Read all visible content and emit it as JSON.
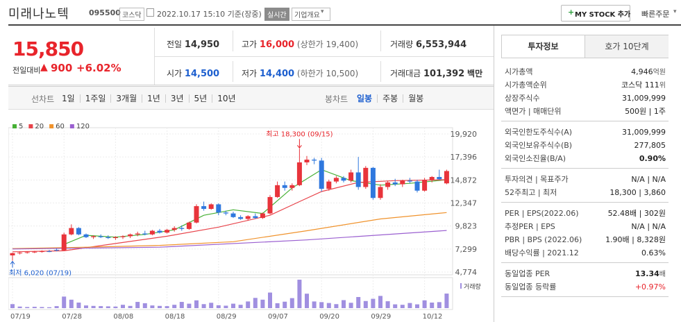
{
  "header": {
    "name": "미래나노텍",
    "code": "095500",
    "market": "코스닥",
    "datetime": "2022.10.17 15:10 기준(장중)",
    "realtime": "실시간",
    "company_info": "기업개요",
    "my_stock": "MY STOCK 추가",
    "quick_order": "빠른주문"
  },
  "quote": {
    "price": "15,850",
    "change_label": "전일대비",
    "change": "900",
    "change_rate": "+6.02%",
    "cells": [
      {
        "label": "전일",
        "value": "14,950"
      },
      {
        "label": "고가",
        "value": "16,000",
        "extra": "(상한가 19,400)"
      },
      {
        "label": "거래량",
        "value": "6,553,944"
      },
      {
        "label": "시가",
        "value": "14,500"
      },
      {
        "label": "저가",
        "value": "14,400",
        "extra": "(하한가 10,500)"
      },
      {
        "label": "거래대금",
        "value": "101,392",
        "unit": "백만"
      }
    ]
  },
  "periods": {
    "line_label": "선차트",
    "line": [
      "1일",
      "1주일",
      "3개월",
      "1년",
      "3년",
      "5년",
      "10년"
    ],
    "candle_label": "봉차트",
    "candle": [
      "일봉",
      "주봉",
      "월봉"
    ]
  },
  "chart_data": {
    "type": "candlestick",
    "categories": [
      "07/19",
      null,
      null,
      null,
      null,
      null,
      null,
      "07/28",
      null,
      null,
      null,
      null,
      null,
      null,
      "08/08",
      null,
      null,
      null,
      null,
      null,
      null,
      "08/18",
      null,
      null,
      null,
      null,
      null,
      null,
      "08/29",
      null,
      null,
      null,
      null,
      null,
      null,
      "09/07",
      null,
      null,
      null,
      null,
      null,
      null,
      "09/20",
      null,
      null,
      null,
      null,
      null,
      null,
      "09/29",
      null,
      null,
      null,
      null,
      null,
      null,
      "10/12",
      null,
      null,
      null
    ],
    "open": [
      6600,
      6850,
      6900,
      6950,
      7000,
      7050,
      7200,
      7150,
      8900,
      9600,
      8900,
      8600,
      8700,
      8600,
      8500,
      8600,
      8700,
      8900,
      9000,
      8900,
      9300,
      9100,
      9400,
      9600,
      9500,
      10200,
      12000,
      11700,
      12200,
      11300,
      11200,
      10800,
      10600,
      10900,
      10700,
      11200,
      13000,
      14300,
      14000,
      14300,
      16800,
      17100,
      17000,
      13900,
      14700,
      15100,
      14800,
      15700,
      14100,
      16200,
      12900,
      14100,
      14600,
      14400,
      14800,
      14700,
      13700,
      14900,
      15200,
      14500
    ],
    "high": [
      6900,
      7000,
      7050,
      7100,
      7150,
      7200,
      7350,
      9100,
      10000,
      9700,
      9000,
      8800,
      8900,
      8800,
      8700,
      8800,
      9000,
      9200,
      9300,
      9400,
      9500,
      9500,
      9800,
      9900,
      10300,
      12200,
      12500,
      12300,
      12300,
      11500,
      11400,
      11000,
      11000,
      11200,
      11300,
      13200,
      14700,
      14700,
      14500,
      18300,
      17500,
      17300,
      17300,
      14900,
      15300,
      15300,
      16000,
      17400,
      16400,
      16300,
      14400,
      14800,
      15000,
      14900,
      15100,
      14900,
      15100,
      15300,
      16000,
      16000
    ],
    "low": [
      6020,
      6700,
      6800,
      6850,
      6900,
      6950,
      7050,
      7100,
      8800,
      8800,
      8500,
      8400,
      8500,
      8400,
      8300,
      8400,
      8500,
      8700,
      8800,
      8800,
      9000,
      9000,
      9200,
      9300,
      9400,
      10100,
      11500,
      11600,
      11000,
      11000,
      10700,
      10500,
      10400,
      10600,
      10600,
      11100,
      12900,
      13700,
      13700,
      14200,
      16500,
      16600,
      13600,
      13700,
      14500,
      14600,
      14600,
      13800,
      13900,
      12700,
      12700,
      13800,
      14200,
      14100,
      14500,
      13500,
      13600,
      14600,
      14900,
      14400
    ],
    "close": [
      6850,
      6900,
      6950,
      7000,
      7050,
      7000,
      7150,
      8900,
      9600,
      8900,
      8600,
      8700,
      8600,
      8500,
      8600,
      8700,
      8900,
      9000,
      8900,
      9300,
      9100,
      9400,
      9600,
      9500,
      10200,
      12000,
      11700,
      12200,
      11300,
      11200,
      10800,
      10600,
      10900,
      10700,
      11200,
      13000,
      14300,
      14000,
      14300,
      16800,
      17100,
      17000,
      13900,
      14700,
      15100,
      14800,
      15700,
      14100,
      16200,
      12900,
      14100,
      14600,
      14400,
      14800,
      14700,
      13700,
      14900,
      15200,
      14950,
      15850
    ],
    "up_color": "#e8343b",
    "down_color": "#2f78de",
    "ylim": [
      4774,
      19920
    ],
    "yticks": [
      {
        "value": 4774,
        "label": "4,774"
      },
      {
        "value": 7299,
        "label": "7,299"
      },
      {
        "value": 9823,
        "label": "9,823"
      },
      {
        "value": 12347,
        "label": "12,347"
      },
      {
        "value": 14872,
        "label": "14,872"
      },
      {
        "value": 17396,
        "label": "17,396"
      },
      {
        "value": 19920,
        "label": "19,920"
      }
    ],
    "series": [
      {
        "name": "5",
        "color": "#46b035",
        "x": [
          7,
          10,
          14,
          18,
          22,
          26,
          30,
          34,
          38,
          42,
          46,
          50,
          54,
          59
        ],
        "values": [
          7800,
          8800,
          8600,
          8900,
          9400,
          11000,
          11600,
          11200,
          14000,
          16000,
          14800,
          14300,
          14500,
          14900
        ]
      },
      {
        "name": "20",
        "color": "#e8434a",
        "x": [
          0,
          7,
          14,
          21,
          28,
          35,
          39,
          42,
          47,
          52,
          59
        ],
        "values": [
          7000,
          7100,
          7900,
          8700,
          9700,
          11000,
          12500,
          13600,
          14600,
          14800,
          14900
        ]
      },
      {
        "name": "60",
        "color": "#f0922b",
        "x": [
          0,
          10,
          20,
          30,
          40,
          50,
          59
        ],
        "values": [
          7350,
          7500,
          7700,
          8100,
          9300,
          10600,
          11300
        ]
      },
      {
        "name": "120",
        "color": "#9a5fd0",
        "x": [
          0,
          20,
          40,
          59
        ],
        "values": [
          7300,
          7500,
          8300,
          9330
        ]
      }
    ],
    "volume": {
      "name": "거래량",
      "color": "#a08fe0",
      "ylim": [
        0,
        15000000
      ],
      "values": [
        1800000,
        700000,
        500000,
        600000,
        500000,
        400000,
        900000,
        5200000,
        3800000,
        2500000,
        1200000,
        1000000,
        900000,
        800000,
        700000,
        1500000,
        1000000,
        2800000,
        2200000,
        1200000,
        1000000,
        900000,
        1500000,
        2800000,
        2000000,
        3500000,
        1800000,
        2400000,
        1300000,
        1100000,
        2000000,
        1500000,
        3000000,
        4600000,
        3800000,
        7000000,
        2200000,
        2900000,
        4500000,
        12800000,
        6500000,
        3000000,
        2700000,
        2300000,
        1800000,
        3600000,
        2400000,
        5000000,
        3200000,
        4200000,
        5500000,
        3100000,
        1700000,
        1500000,
        2300000,
        1700000,
        3500000,
        2500000,
        2700000,
        6553944
      ]
    },
    "annotations": {
      "max": "최고 18,300 (09/15)",
      "min": "최저 6,020 (07/19)"
    }
  },
  "side": {
    "tabs": [
      "투자정보",
      "호가 10단계"
    ],
    "groups": [
      {
        "rows": [
          {
            "label": "시가총액",
            "value": "4,946",
            "unit": "억원"
          },
          {
            "label": "시가총액순위",
            "value": "코스닥 111",
            "unit": "위"
          },
          {
            "label": "상장주식수",
            "value": "31,009,999"
          },
          {
            "label": "액면가 | 매매단위",
            "value": "500원 | 1주"
          }
        ]
      },
      {
        "rows": [
          {
            "label": "외국인한도주식수(A)",
            "value": "31,009,999"
          },
          {
            "label": "외국인보유주식수(B)",
            "value": "277,805"
          },
          {
            "label": "외국인소진율(B/A)",
            "value": "0.90%"
          }
        ]
      },
      {
        "rows": [
          {
            "label": "투자의견 | 목표주가",
            "value": "N/A | N/A"
          },
          {
            "label": "52주최고 | 최저",
            "value": "18,300 | 3,860"
          }
        ]
      },
      {
        "rows": [
          {
            "label": "PER | EPS(2022.06)",
            "value": "52.48배 | 302원"
          },
          {
            "label": "추정PER | EPS",
            "value": "N/A | N/A"
          },
          {
            "label": "PBR | BPS (2022.06)",
            "value": "1.90배 | 8,328원"
          },
          {
            "label": "배당수익률 | 2021.12",
            "value": "0.63%"
          }
        ]
      },
      {
        "rows": [
          {
            "label": "동일업종 PER",
            "value": "13.34",
            "unit": "배"
          },
          {
            "label": "동일업종 등락률",
            "value": "+0.97%"
          }
        ]
      }
    ]
  }
}
